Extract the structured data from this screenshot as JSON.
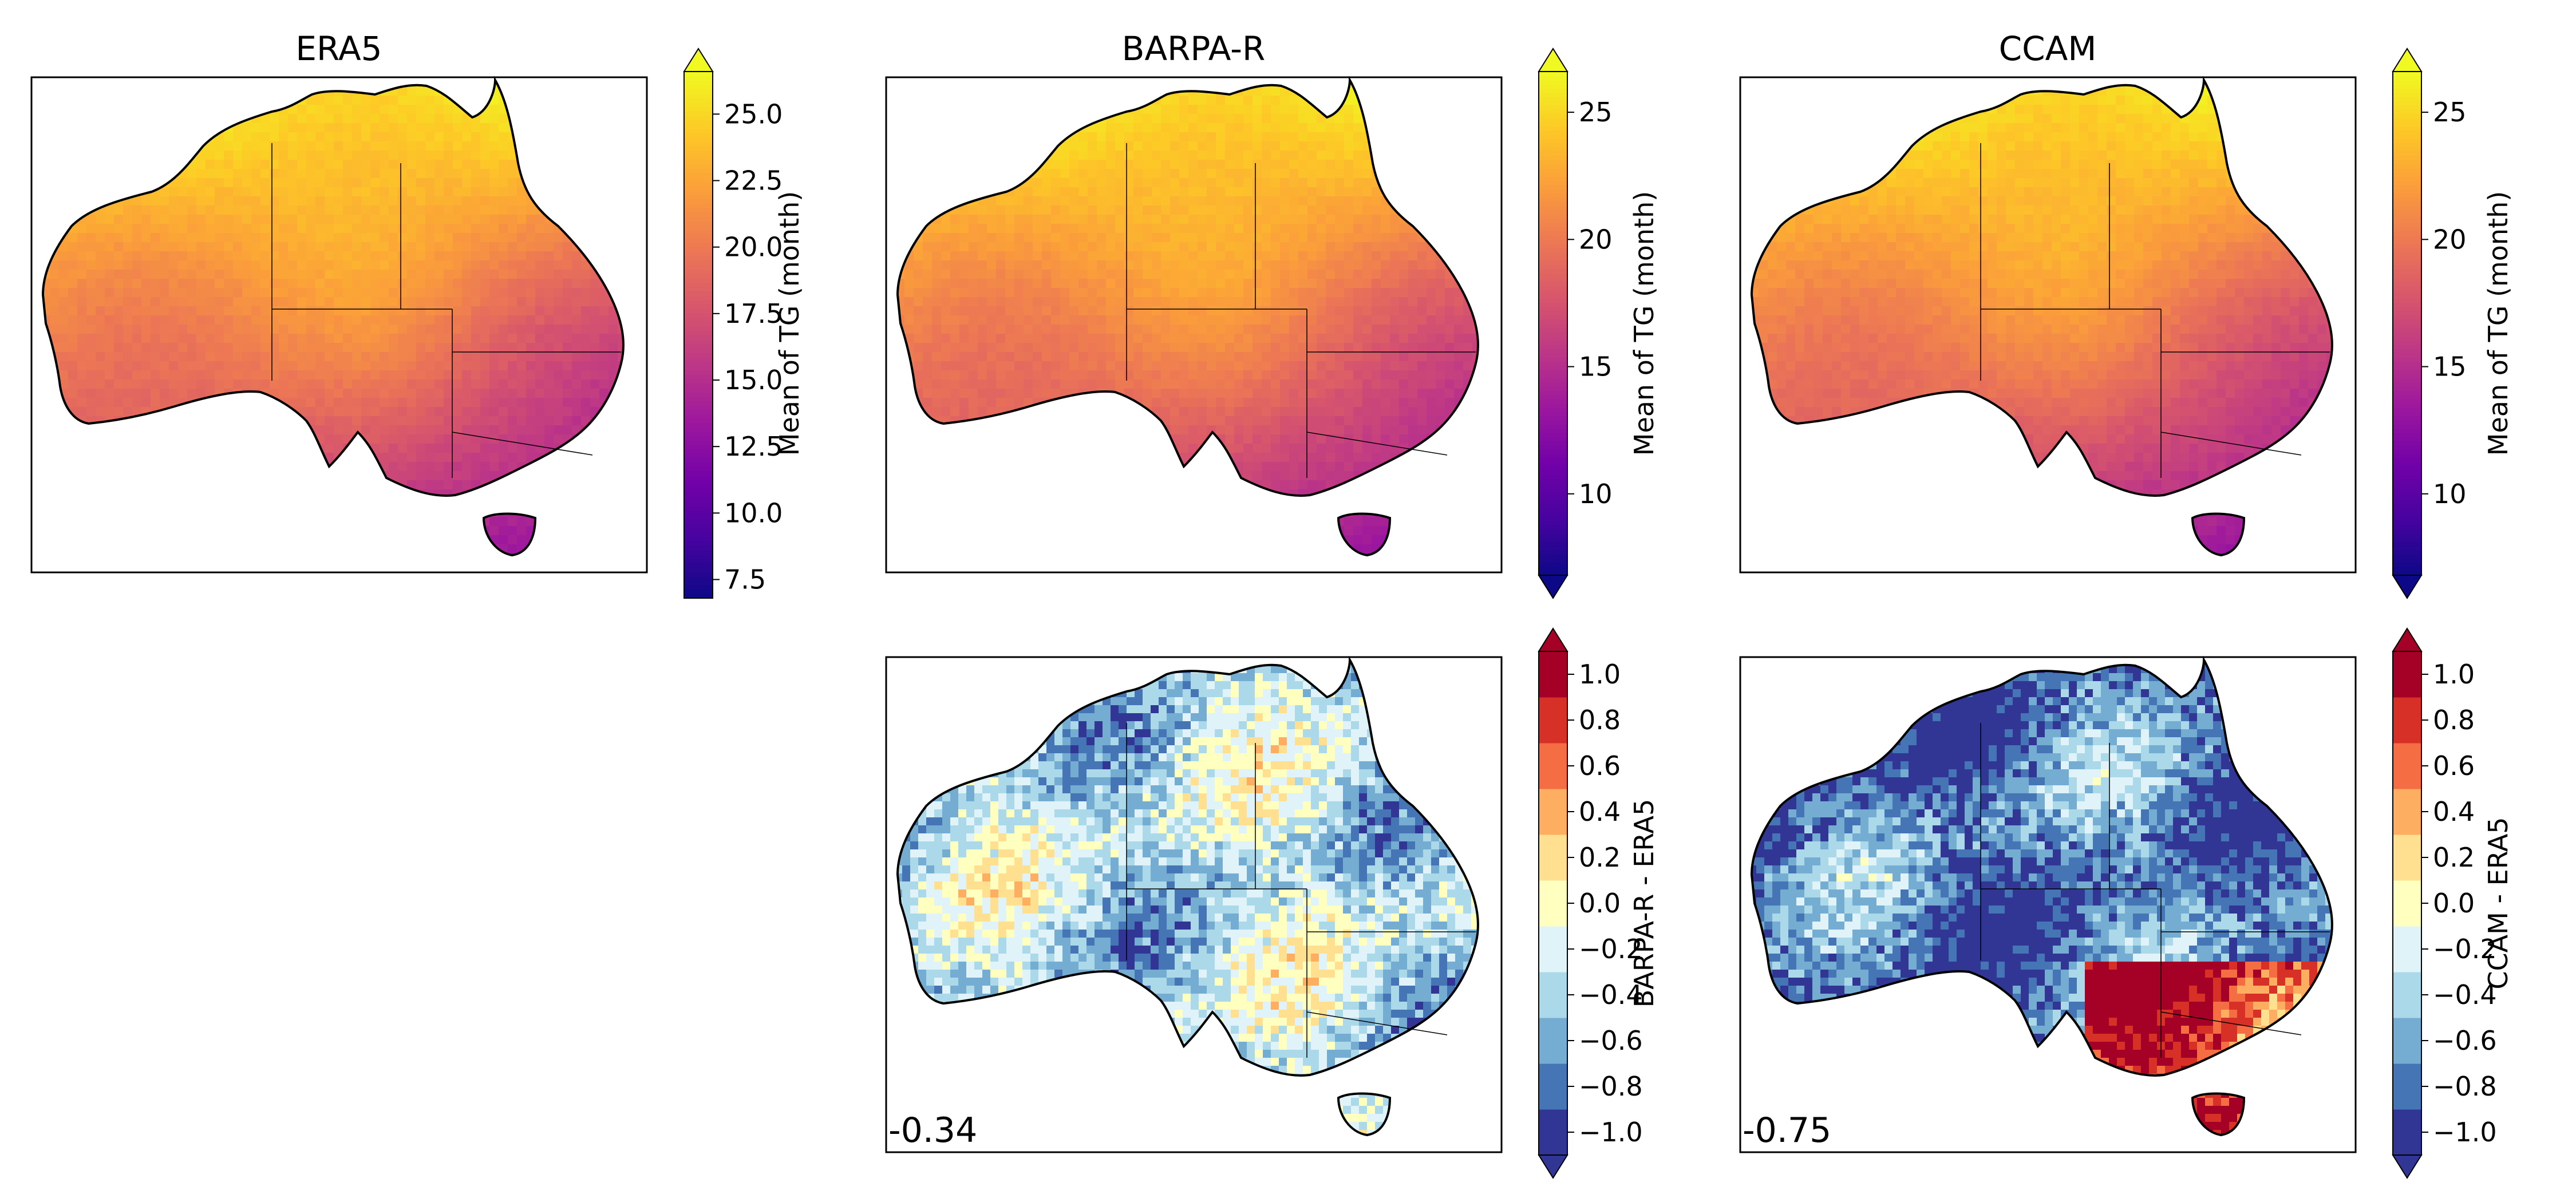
{
  "chart_data": [
    {
      "type": "heatmap",
      "title": "ERA5",
      "colorbar": {
        "label": "Mean of TG (month)",
        "colormap": "plasma",
        "range": [
          6.8,
          26.6
        ],
        "extend": "max",
        "ticks": [
          7.5,
          10.0,
          12.5,
          15.0,
          17.5,
          20.0,
          22.5,
          25.0
        ],
        "tick_labels": [
          "7.5",
          "10.0",
          "12.5",
          "15.0",
          "17.5",
          "20.0",
          "22.5",
          "25.0"
        ]
      },
      "annotation": ""
    },
    {
      "type": "heatmap",
      "title": "BARPA-R",
      "colorbar": {
        "label": "Mean of TG (month)",
        "colormap": "plasma",
        "range": [
          6.8,
          26.6
        ],
        "extend": "both",
        "ticks": [
          10,
          15,
          20,
          25
        ],
        "tick_labels": [
          "10",
          "15",
          "20",
          "25"
        ]
      },
      "annotation": ""
    },
    {
      "type": "heatmap",
      "title": "CCAM",
      "colorbar": {
        "label": "Mean of TG (month)",
        "colormap": "plasma",
        "range": [
          6.8,
          26.6
        ],
        "extend": "both",
        "ticks": [
          10,
          15,
          20,
          25
        ],
        "tick_labels": [
          "10",
          "15",
          "20",
          "25"
        ]
      },
      "annotation": ""
    },
    {
      "type": "heatmap",
      "title": "",
      "colorbar": {
        "label": "BARPA-R - ERA5",
        "colormap": "RdYlBu_r",
        "range": [
          -1.1,
          1.1
        ],
        "extend": "both",
        "ticks": [
          -1.0,
          -0.8,
          -0.6,
          -0.4,
          -0.2,
          0.0,
          0.2,
          0.4,
          0.6,
          0.8,
          1.0
        ],
        "tick_labels": [
          "−1.0",
          "−0.8",
          "−0.6",
          "−0.4",
          "−0.2",
          "0.0",
          "0.2",
          "0.4",
          "0.6",
          "0.8",
          "1.0"
        ]
      },
      "annotation": "-0.34"
    },
    {
      "type": "heatmap",
      "title": "",
      "colorbar": {
        "label": "CCAM - ERA5",
        "colormap": "RdYlBu_r",
        "range": [
          -1.1,
          1.1
        ],
        "extend": "both",
        "ticks": [
          -1.0,
          -0.8,
          -0.6,
          -0.4,
          -0.2,
          0.0,
          0.2,
          0.4,
          0.6,
          0.8,
          1.0
        ],
        "tick_labels": [
          "−1.0",
          "−0.8",
          "−0.6",
          "−0.4",
          "−0.2",
          "0.0",
          "0.2",
          "0.4",
          "0.6",
          "0.8",
          "1.0"
        ]
      },
      "annotation": "-0.75"
    }
  ],
  "colors": {
    "plasma": [
      "#0d0887",
      "#46039f",
      "#7201a8",
      "#9c179e",
      "#bd3786",
      "#d8576b",
      "#ed7953",
      "#fb9f3a",
      "#fdca26",
      "#f0f921"
    ],
    "diverging": [
      "#313695",
      "#4575b4",
      "#74add1",
      "#abd9e9",
      "#e0f3f8",
      "#ffffbf",
      "#fee090",
      "#fdae61",
      "#f46d43",
      "#d73027",
      "#a50026"
    ]
  }
}
